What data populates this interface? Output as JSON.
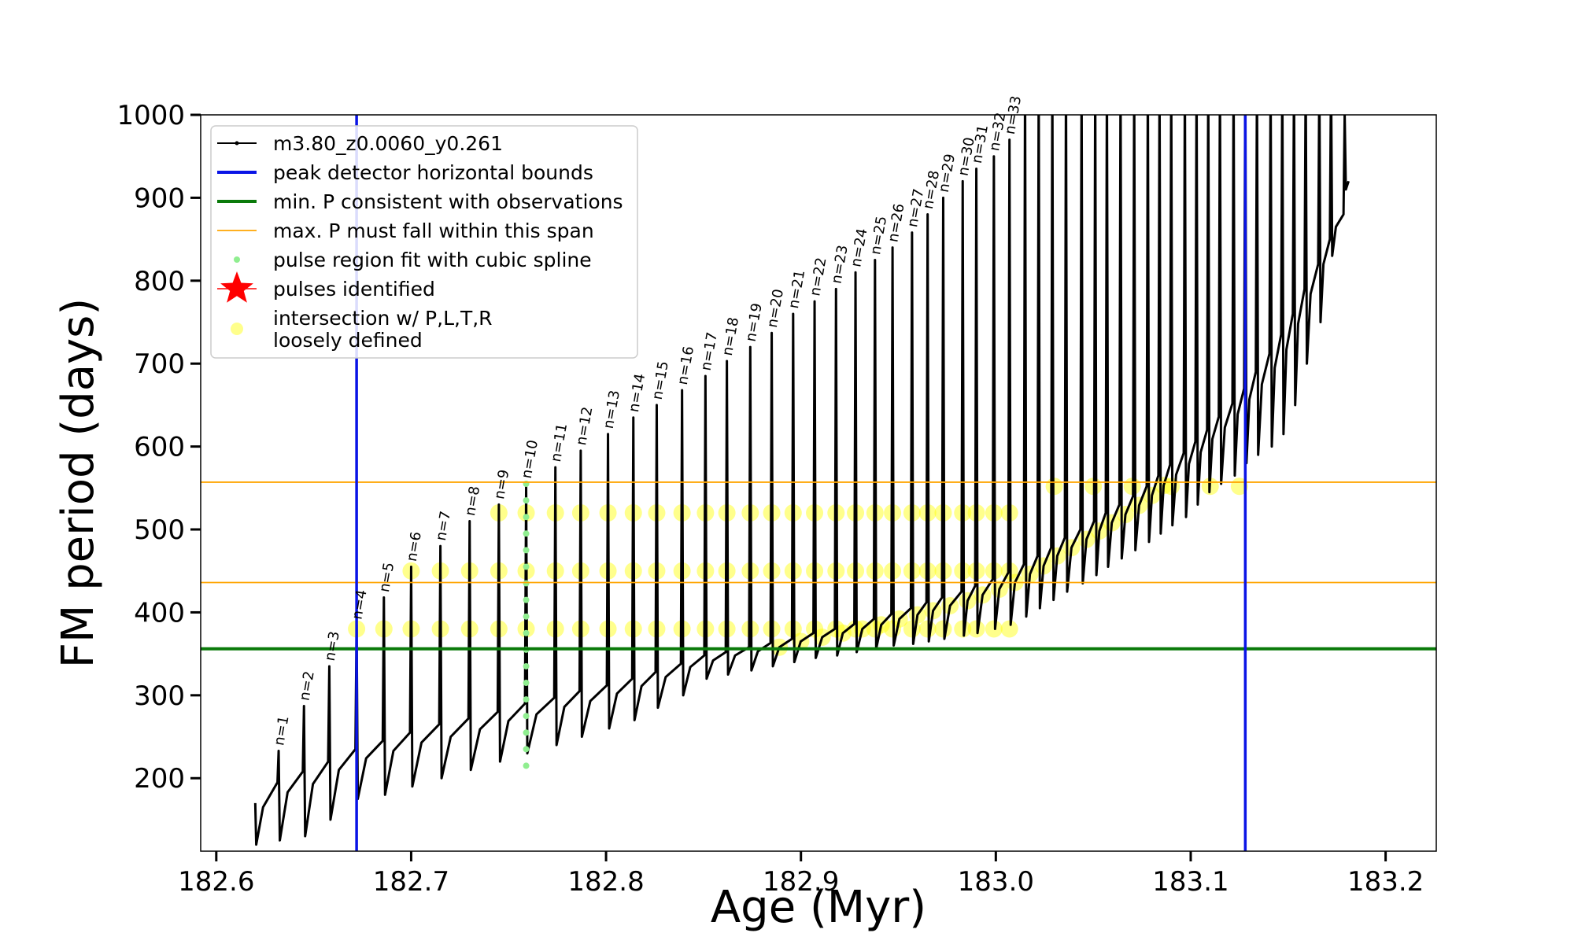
{
  "chart_data": {
    "type": "line",
    "xlabel": "Age (Myr)",
    "ylabel": "FM period (days)",
    "xlim": [
      182.592,
      183.226
    ],
    "ylim": [
      112,
      1000
    ],
    "xticks": [
      182.6,
      182.7,
      182.8,
      182.9,
      {
        "value": 183,
        "label": "183.0"
      },
      183.1,
      183.2
    ],
    "yticks": [
      200,
      300,
      400,
      500,
      600,
      700,
      800,
      900,
      1000
    ],
    "legend": "upper left",
    "annotations": [
      "n=1",
      "n=2",
      "n=3",
      "n=4",
      "n=5",
      "n=6",
      "n=7",
      "n=8",
      "n=9",
      "n=10",
      "n=11",
      "n=12",
      "n=13",
      "n=14",
      "n=15",
      "n=16",
      "n=17",
      "n=18",
      "n=19",
      "n=20",
      "n=21",
      "n=22",
      "n=23",
      "n=24",
      "n=25",
      "n=26",
      "n=27",
      "n=28",
      "n=29",
      "n=30",
      "n=31",
      "n=32",
      "n=33"
    ],
    "series": [
      {
        "name": "m3.80_z0.0060_y0.261",
        "type": "line",
        "color": "#000000",
        "x": [
          182.62,
          182.6205,
          182.624,
          182.6314,
          182.632,
          182.6326,
          182.6366,
          182.6444,
          182.645,
          182.6456,
          182.6496,
          182.6574,
          182.658,
          182.6586,
          182.6629,
          182.6714,
          182.672,
          182.6726,
          182.6769,
          182.6854,
          182.686,
          182.6866,
          182.6909,
          182.6994,
          182.7,
          182.7006,
          182.7053,
          182.7144,
          182.715,
          182.7156,
          182.7203,
          182.7294,
          182.73,
          182.7306,
          182.7353,
          182.7444,
          182.745,
          182.7456,
          182.7499,
          182.7584,
          182.759,
          182.7596,
          182.7643,
          182.7734,
          182.774,
          182.7746,
          182.7786,
          182.7864,
          182.787,
          182.7876,
          182.7919,
          182.8004,
          182.801,
          182.8016,
          182.8056,
          182.8134,
          182.814,
          182.8146,
          182.8182,
          182.8254,
          182.826,
          182.8266,
          182.8306,
          182.8384,
          182.839,
          182.8396,
          182.8432,
          182.8504,
          182.851,
          182.8516,
          182.8549,
          182.8614,
          182.862,
          182.8626,
          182.8662,
          182.8734,
          182.874,
          182.8746,
          182.8779,
          182.8844,
          182.885,
          182.8856,
          182.8889,
          182.8954,
          182.896,
          182.8966,
          182.8999,
          182.9064,
          182.907,
          182.9076,
          182.9109,
          182.9174,
          182.918,
          182.9186,
          182.9215,
          182.9274,
          182.928,
          182.9286,
          182.9315,
          182.9374,
          182.938,
          182.9386,
          182.9412,
          182.9464,
          182.947,
          182.9476,
          182.9505,
          182.9564,
          182.957,
          182.9576,
          182.9598,
          182.9644,
          182.965,
          182.9656,
          182.9678,
          182.9724,
          182.973,
          182.9736,
          182.9765,
          182.9824,
          182.983,
          182.9836,
          182.9855,
          182.9894,
          182.99,
          182.9906,
          182.9932,
          182.9984,
          182.999,
          182.9996,
          183.0018,
          183.0064,
          183.007,
          183.0076,
          183.0098,
          183.0144,
          183.015,
          183.0156,
          183.0175,
          183.0214,
          183.022,
          183.0226,
          183.0245,
          183.0284,
          183.029,
          183.0296,
          183.0315,
          183.0354,
          183.036,
          183.0366,
          183.0388,
          183.0434,
          183.044,
          183.0446,
          183.0465,
          183.0504,
          183.051,
          183.0516,
          183.0531,
          183.0564,
          183.057,
          183.0576,
          183.0595,
          183.0634,
          183.064,
          183.0646,
          183.0665,
          183.0704,
          183.071,
          183.0716,
          183.0735,
          183.0774,
          183.078,
          183.0786,
          183.0801,
          183.0834,
          183.084,
          183.0846,
          183.0861,
          183.0894,
          183.09,
          183.0906,
          183.0925,
          183.0964,
          183.097,
          183.0976,
          183.0991,
          183.1024,
          183.103,
          183.1036,
          183.1051,
          183.1084,
          183.109,
          183.1096,
          183.1111,
          183.1144,
          183.115,
          183.1156,
          183.1175,
          183.1214,
          183.122,
          183.1226,
          183.1241,
          183.1274,
          183.128,
          183.1286,
          183.1301,
          183.1334,
          183.134,
          183.1346,
          183.1365,
          183.1404,
          183.141,
          183.1416,
          183.1431,
          183.1464,
          183.147,
          183.1476,
          183.1491,
          183.1524,
          183.153,
          183.1536,
          183.1551,
          183.1584,
          183.159,
          183.1596,
          183.1615,
          183.1654,
          183.166,
          183.1666,
          183.1681,
          183.1714,
          183.172,
          183.1726,
          183.1745,
          183.1784,
          183.179,
          183.1796,
          183.181
        ],
        "values": [
          170,
          120,
          165,
          195,
          233,
          125,
          183,
          208,
          287,
          130,
          193,
          220,
          335,
          150,
          210,
          235,
          385,
          175,
          224,
          245,
          418,
          180,
          233,
          255,
          455,
          190,
          243,
          265,
          480,
          200,
          250,
          272,
          510,
          210,
          259,
          280,
          530,
          220,
          269,
          290,
          555,
          230,
          277,
          297,
          575,
          240,
          286,
          305,
          595,
          250,
          293,
          312,
          615,
          260,
          302,
          320,
          635,
          270,
          311,
          328,
          650,
          285,
          322,
          338,
          668,
          300,
          334,
          348,
          685,
          320,
          342,
          352,
          703,
          325,
          348,
          358,
          720,
          330,
          353,
          363,
          737,
          335,
          358,
          368,
          760,
          340,
          365,
          375,
          775,
          345,
          370,
          380,
          790,
          348,
          375,
          386,
          810,
          352,
          380,
          392,
          825,
          356,
          385,
          398,
          840,
          360,
          392,
          405,
          858,
          362,
          397,
          412,
          880,
          365,
          402,
          418,
          900,
          368,
          408,
          425,
          920,
          372,
          414,
          432,
          935,
          375,
          421,
          440,
          950,
          380,
          428,
          448,
          970,
          385,
          436,
          458,
          1050,
          395,
          446,
          468,
          1050,
          405,
          456,
          478,
          1050,
          415,
          468,
          490,
          1050,
          425,
          478,
          500,
          1050,
          435,
          488,
          510,
          1050,
          445,
          498,
          520,
          1050,
          455,
          508,
          530,
          1050,
          465,
          518,
          540,
          1050,
          475,
          529,
          552,
          1050,
          485,
          541,
          565,
          1050,
          495,
          553,
          578,
          1050,
          505,
          566,
          592,
          1050,
          515,
          579,
          606,
          1050,
          530,
          593,
          620,
          1050,
          545,
          609,
          636,
          1050,
          555,
          623,
          652,
          1050,
          565,
          639,
          670,
          1050,
          580,
          657,
          690,
          1050,
          590,
          675,
          712,
          1050,
          600,
          695,
          735,
          1050,
          615,
          717,
          760,
          1050,
          650,
          748,
          790,
          1050,
          700,
          784,
          820,
          1050,
          750,
          820,
          850,
          1050,
          830,
          865,
          880,
          1000,
          910,
          920
        ]
      },
      {
        "name": "peak detector horizontal bounds",
        "type": "vline",
        "color": "#0a14e6",
        "x": [
          182.672,
          183.128
        ]
      },
      {
        "name": "min. P consistent with observations",
        "type": "hline",
        "color": "#0a7a0a",
        "values": [
          356
        ]
      },
      {
        "name": "max. P must fall within this span",
        "type": "hline",
        "color": "#ffa500",
        "values": [
          557,
          436
        ]
      },
      {
        "name": "pulse region fit with cubic spline",
        "type": "scatter",
        "marker": "circle",
        "color": "#90ee90",
        "x": [
          182.759,
          182.759,
          182.759,
          182.759,
          182.759,
          182.759,
          182.759,
          182.759,
          182.759,
          182.759,
          182.759,
          182.759,
          182.759,
          182.759,
          182.759,
          182.759,
          182.759,
          182.759
        ],
        "values": [
          215,
          235,
          255,
          275,
          295,
          315,
          335,
          355,
          375,
          395,
          415,
          435,
          455,
          475,
          495,
          515,
          535,
          555
        ]
      },
      {
        "name": "pulses identified",
        "type": "scatter",
        "marker": "star",
        "color": "#ff0000",
        "x": [],
        "values": []
      },
      {
        "name": [
          "intersection w/ P,L,T,R",
          "loosely defined"
        ],
        "type": "scatter",
        "marker": "circle",
        "color": "#ffff00",
        "x": [
          182.672,
          182.686,
          182.7,
          182.7,
          182.715,
          182.715,
          182.73,
          182.73,
          182.745,
          182.745,
          182.745,
          182.759,
          182.759,
          182.759,
          182.774,
          182.774,
          182.774,
          182.787,
          182.787,
          182.787,
          182.801,
          182.801,
          182.801,
          182.814,
          182.814,
          182.814,
          182.826,
          182.826,
          182.826,
          182.839,
          182.839,
          182.839,
          182.851,
          182.851,
          182.851,
          182.862,
          182.862,
          182.862,
          182.874,
          182.874,
          182.874,
          182.885,
          182.885,
          182.885,
          182.896,
          182.896,
          182.896,
          182.907,
          182.907,
          182.907,
          182.918,
          182.918,
          182.918,
          182.928,
          182.928,
          182.928,
          182.938,
          182.938,
          182.938,
          182.947,
          182.947,
          182.947,
          182.957,
          182.957,
          182.957,
          182.965,
          182.965,
          182.965,
          182.973,
          182.973,
          182.973,
          182.983,
          182.983,
          182.983,
          182.99,
          182.99,
          182.99,
          182.999,
          182.999,
          182.999,
          183.007,
          183.007,
          183.007,
          182.8889,
          182.8999,
          182.9109,
          182.9215,
          182.9315,
          182.9412,
          182.9505,
          182.9598,
          182.9678,
          182.9765,
          182.9855,
          182.9932,
          183.0018,
          183.0098,
          183.0175,
          183.0245,
          183.0315,
          183.0388,
          183.0465,
          183.0531,
          183.0595,
          183.0665,
          183.0735,
          183.0801,
          183.0861,
          183.03,
          183.05,
          183.07,
          183.09,
          183.11,
          183.125
        ],
        "values": [
          380,
          380,
          380,
          450,
          380,
          450,
          380,
          450,
          380,
          450,
          520,
          380,
          450,
          520,
          380,
          450,
          520,
          380,
          450,
          520,
          380,
          450,
          520,
          380,
          450,
          520,
          380,
          450,
          520,
          380,
          450,
          520,
          380,
          450,
          520,
          380,
          450,
          520,
          380,
          450,
          520,
          380,
          450,
          520,
          380,
          450,
          520,
          380,
          450,
          520,
          380,
          450,
          520,
          380,
          450,
          520,
          380,
          450,
          520,
          380,
          450,
          520,
          380,
          450,
          520,
          380,
          450,
          520,
          380,
          450,
          520,
          380,
          450,
          520,
          380,
          450,
          520,
          380,
          450,
          520,
          380,
          450,
          520,
          358,
          365,
          370,
          375,
          380,
          385,
          392,
          397,
          402,
          408,
          414,
          421,
          428,
          436,
          446,
          456,
          468,
          478,
          488,
          498,
          508,
          518,
          529,
          541,
          553,
          552,
          552,
          552,
          552,
          552,
          552
        ]
      }
    ]
  }
}
